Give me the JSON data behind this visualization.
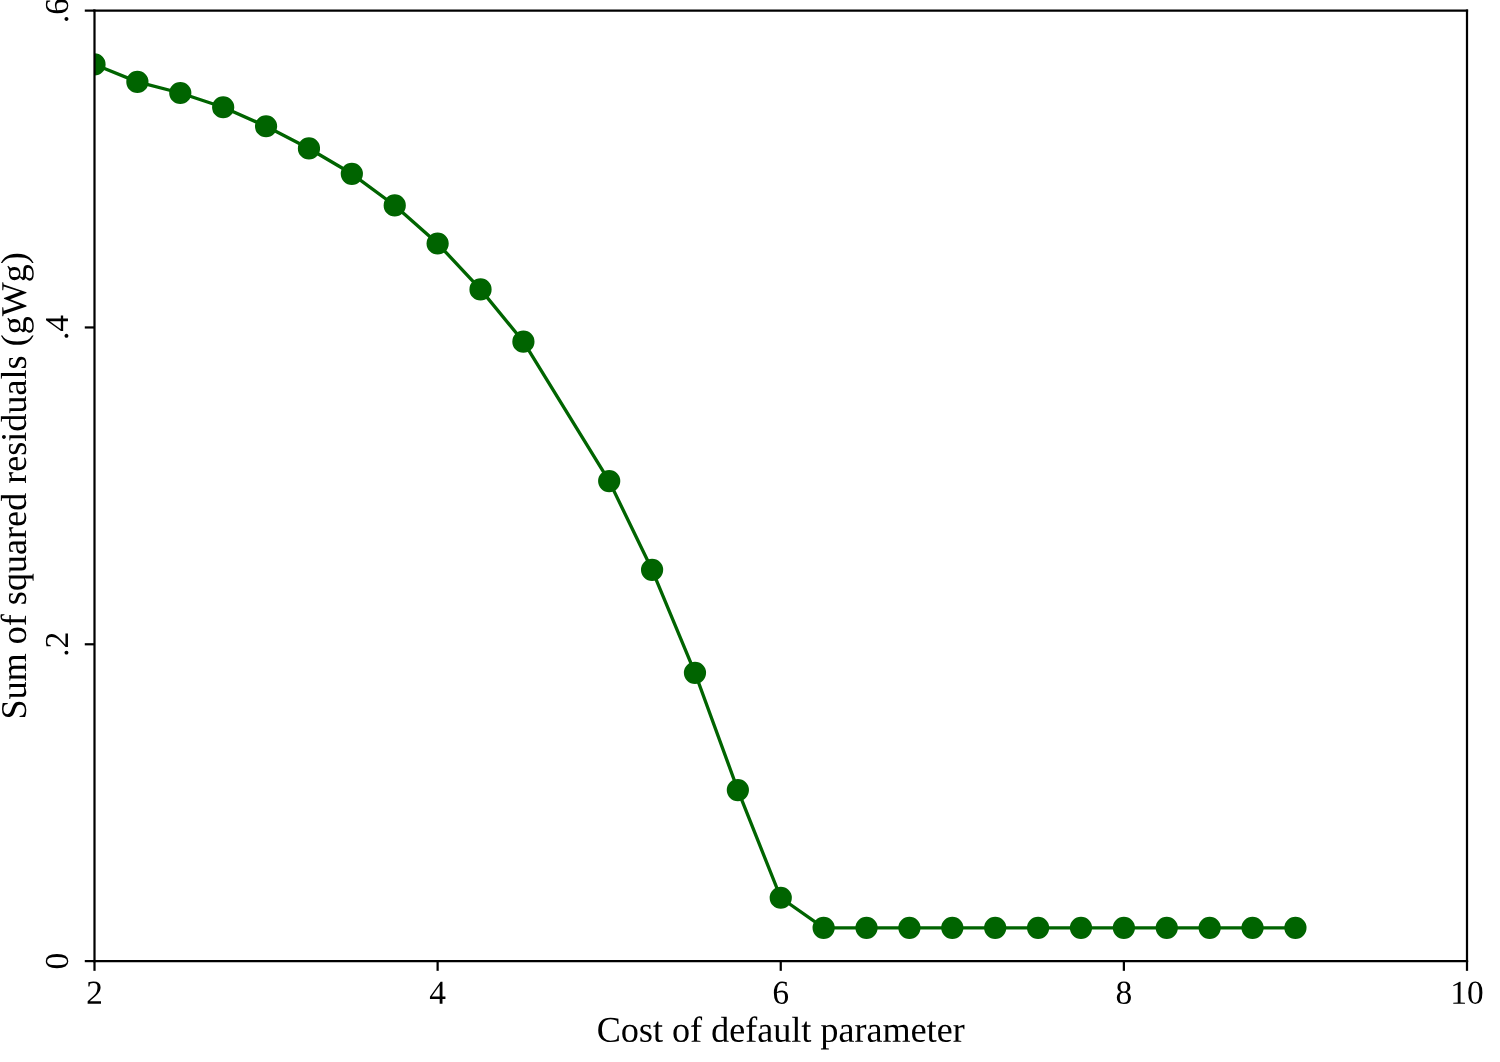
{
  "chart_data": {
    "type": "line",
    "xlabel": "Cost of default parameter",
    "ylabel": "Sum of squared residuals (gWg)",
    "x": [
      2,
      2.25,
      2.5,
      2.75,
      3,
      3.25,
      3.5,
      3.75,
      4,
      4.25,
      4.5,
      5,
      5.25,
      5.5,
      5.75,
      6,
      6.25,
      6.5,
      6.75,
      7,
      7.25,
      7.5,
      7.75,
      8,
      8.25,
      8.5,
      8.75,
      9
    ],
    "series": [
      {
        "color": "#006400",
        "values": [
          0.566,
          0.555,
          0.548,
          0.539,
          0.527,
          0.513,
          0.497,
          0.477,
          0.453,
          0.424,
          0.391,
          0.303,
          0.247,
          0.182,
          0.108,
          0.04,
          0.021,
          0.021,
          0.021,
          0.021,
          0.021,
          0.021,
          0.021,
          0.021,
          0.021,
          0.021,
          0.021,
          0.021
        ]
      }
    ],
    "xlim": [
      2,
      10
    ],
    "xticks": [
      2,
      4,
      6,
      8,
      10
    ],
    "ylim": [
      0,
      0.6
    ],
    "yticks": [
      {
        "value": 0,
        "label": "0"
      },
      {
        "value": 0.2,
        "label": ".2"
      },
      {
        "value": 0.4,
        "label": ".4"
      },
      {
        "value": 0.6,
        "label": ".6"
      }
    ],
    "marker": "circle",
    "line_style": "solid",
    "grid": false,
    "legend": false
  }
}
